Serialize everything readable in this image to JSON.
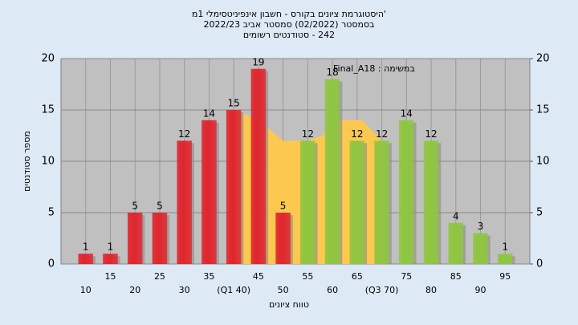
{
  "chart_data": {
    "type": "bar",
    "title": "'היסטוגרמת ציונים בקורס - חשבון אינפיניטסימלי 1מ",
    "subtitle": "בסמסטר (02/2022) סמסטר אביב 2022/23",
    "subtitle2": "242 - סטודנטים רשומים",
    "annotation": "במשימה : Final_A18",
    "x_label": "טווח ציונים",
    "y_label": "מספר סטודנטים",
    "categories": [
      "10",
      "15",
      "20",
      "25",
      "30",
      "35",
      "(Q1 40)",
      "45",
      "50",
      "55",
      "60",
      "65",
      "(Q3 70)",
      "75",
      "80",
      "85",
      "90",
      "95"
    ],
    "values": [
      1,
      1,
      5,
      5,
      12,
      14,
      15,
      19,
      5,
      12,
      18,
      12,
      12,
      14,
      12,
      4,
      3,
      1
    ],
    "colors": [
      "#e0262d",
      "#e0262d",
      "#e0262d",
      "#e0262d",
      "#e0262d",
      "#e0262d",
      "#e0262d",
      "#e0262d",
      "#e0262d",
      "#8fc63f",
      "#8fc63f",
      "#8fc63f",
      "#8fc63f",
      "#8fc63f",
      "#8fc63f",
      "#8fc63f",
      "#8fc63f",
      "#8fc63f"
    ],
    "area": {
      "x": [
        40,
        40,
        45,
        50,
        55,
        58,
        60,
        66,
        70,
        70
      ],
      "values": [
        0,
        15,
        14,
        12,
        12,
        12.5,
        14,
        14,
        12,
        0
      ],
      "color": "#ffc84a"
    },
    "ylim": [
      0,
      20
    ],
    "yticks": [
      0,
      5,
      10,
      15,
      20
    ],
    "y2lim": [
      0,
      20
    ],
    "y2ticks": [
      0,
      5,
      10,
      15,
      20
    ],
    "grid": true
  }
}
